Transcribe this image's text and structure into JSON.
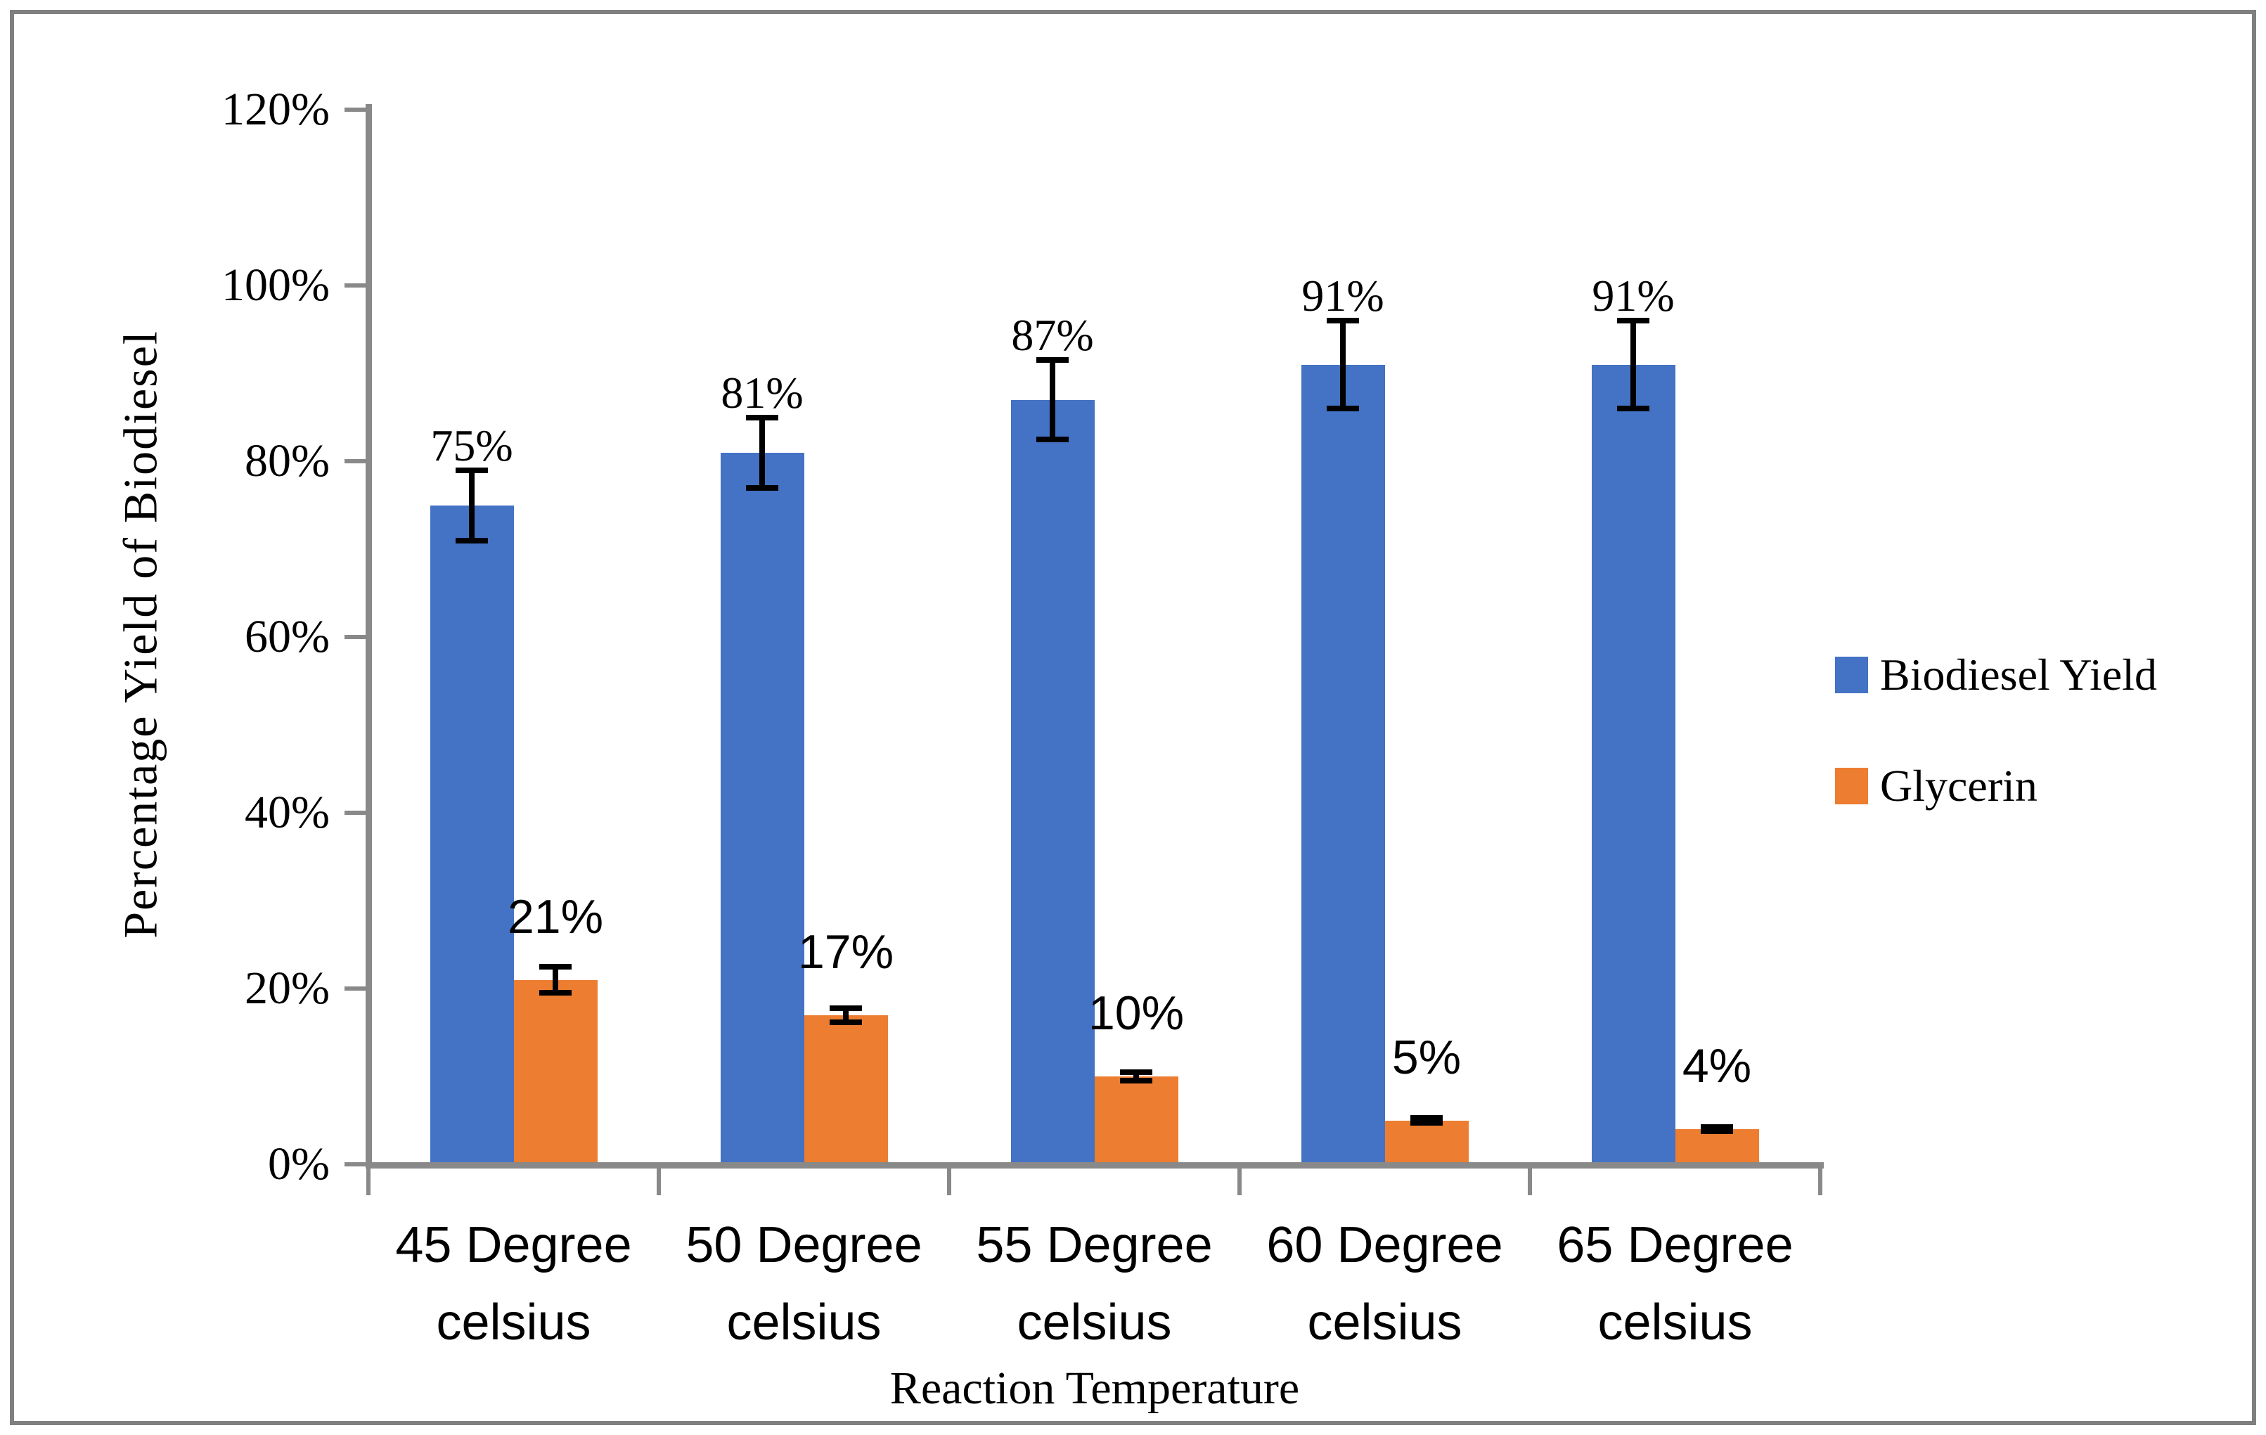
{
  "figure": {
    "background": "#FFFFFF",
    "border_color": "#7F7F7F",
    "axis_color": "#898989",
    "text_color": "#000000"
  },
  "chart_data": {
    "type": "bar",
    "title": "",
    "xlabel": "Reaction Temperature",
    "ylabel": "Percentage Yield of Biodiesel",
    "ylim": [
      0,
      120
    ],
    "grid": false,
    "legend_position": "right",
    "categories": [
      "45 Degree celsius",
      "50 Degree celsius",
      "55 Degree celsius",
      "60 Degree celsius",
      "65 Degree celsius"
    ],
    "y_ticks": [
      {
        "value": 120,
        "label": "120%"
      },
      {
        "value": 100,
        "label": "100%"
      },
      {
        "value": 80,
        "label": "80%"
      },
      {
        "value": 60,
        "label": "60%"
      },
      {
        "value": 40,
        "label": "40%"
      },
      {
        "value": 20,
        "label": "20%"
      },
      {
        "value": 0,
        "label": "0%"
      }
    ],
    "series": [
      {
        "name": "Biodiesel Yield",
        "color": "#4472C4",
        "label_font": "serif",
        "values": [
          75,
          81,
          87,
          91,
          91
        ],
        "data_labels": [
          "75%",
          "81%",
          "87%",
          "91%",
          "91%"
        ],
        "error_bars": [
          4,
          4,
          4.5,
          5,
          5
        ]
      },
      {
        "name": "Glycerin",
        "color": "#ED7D31",
        "label_font": "sans",
        "values": [
          21,
          17,
          10,
          5,
          4
        ],
        "data_labels": [
          "21%",
          "17%",
          "10%",
          "5%",
          "4%"
        ],
        "error_bars": [
          1.5,
          0.8,
          0.5,
          0.3,
          0.25
        ]
      }
    ]
  }
}
